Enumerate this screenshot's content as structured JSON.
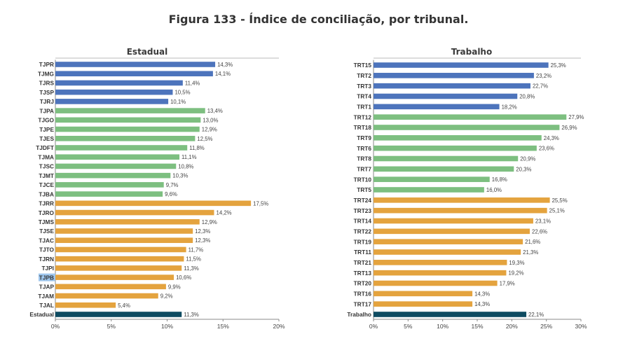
{
  "page": {
    "title": "Figura 133 - Índice de conciliação, por tribunal."
  },
  "colors": {
    "group1": "#4d74bc",
    "group2": "#7dbf80",
    "group3": "#e4a33e",
    "total": "#0e4b61",
    "highlight": "#9fc7ee"
  },
  "chart_data": [
    {
      "type": "bar",
      "orientation": "horizontal",
      "title": "Estadual",
      "xlim": [
        0,
        20
      ],
      "xticks": [
        "0%",
        "5%",
        "10%",
        "15%",
        "20%"
      ],
      "grid": false,
      "highlighted_label": "TJPB",
      "bars": [
        {
          "label": "TJPR",
          "value": 14.3,
          "text": "14,3%",
          "group": "group1"
        },
        {
          "label": "TJMG",
          "value": 14.1,
          "text": "14,1%",
          "group": "group1"
        },
        {
          "label": "TJRS",
          "value": 11.4,
          "text": "11,4%",
          "group": "group1"
        },
        {
          "label": "TJSP",
          "value": 10.5,
          "text": "10,5%",
          "group": "group1"
        },
        {
          "label": "TJRJ",
          "value": 10.1,
          "text": "10,1%",
          "group": "group1"
        },
        {
          "label": "TJPA",
          "value": 13.4,
          "text": "13,4%",
          "group": "group2"
        },
        {
          "label": "TJGO",
          "value": 13.0,
          "text": "13,0%",
          "group": "group2"
        },
        {
          "label": "TJPE",
          "value": 12.9,
          "text": "12,9%",
          "group": "group2"
        },
        {
          "label": "TJES",
          "value": 12.5,
          "text": "12,5%",
          "group": "group2"
        },
        {
          "label": "TJDFT",
          "value": 11.8,
          "text": "11,8%",
          "group": "group2"
        },
        {
          "label": "TJMA",
          "value": 11.1,
          "text": "11,1%",
          "group": "group2"
        },
        {
          "label": "TJSC",
          "value": 10.8,
          "text": "10,8%",
          "group": "group2"
        },
        {
          "label": "TJMT",
          "value": 10.3,
          "text": "10,3%",
          "group": "group2"
        },
        {
          "label": "TJCE",
          "value": 9.7,
          "text": "9,7%",
          "group": "group2"
        },
        {
          "label": "TJBA",
          "value": 9.6,
          "text": "9,6%",
          "group": "group2"
        },
        {
          "label": "TJRR",
          "value": 17.5,
          "text": "17,5%",
          "group": "group3"
        },
        {
          "label": "TJRO",
          "value": 14.2,
          "text": "14,2%",
          "group": "group3"
        },
        {
          "label": "TJMS",
          "value": 12.9,
          "text": "12,9%",
          "group": "group3"
        },
        {
          "label": "TJSE",
          "value": 12.3,
          "text": "12,3%",
          "group": "group3"
        },
        {
          "label": "TJAC",
          "value": 12.3,
          "text": "12,3%",
          "group": "group3"
        },
        {
          "label": "TJTO",
          "value": 11.7,
          "text": "11,7%",
          "group": "group3"
        },
        {
          "label": "TJRN",
          "value": 11.5,
          "text": "11,5%",
          "group": "group3"
        },
        {
          "label": "TJPI",
          "value": 11.3,
          "text": "11,3%",
          "group": "group3"
        },
        {
          "label": "TJPB",
          "value": 10.6,
          "text": "10,6%",
          "group": "group3"
        },
        {
          "label": "TJAP",
          "value": 9.9,
          "text": "9,9%",
          "group": "group3"
        },
        {
          "label": "TJAM",
          "value": 9.2,
          "text": "9,2%",
          "group": "group3"
        },
        {
          "label": "TJAL",
          "value": 5.4,
          "text": "5,4%",
          "group": "group3"
        },
        {
          "label": "Estadual",
          "value": 11.3,
          "text": "11,3%",
          "group": "total"
        }
      ]
    },
    {
      "type": "bar",
      "orientation": "horizontal",
      "title": "Trabalho",
      "xlim": [
        0,
        30
      ],
      "xticks": [
        "0%",
        "5%",
        "10%",
        "15%",
        "20%",
        "25%",
        "30%"
      ],
      "grid": false,
      "bars": [
        {
          "label": "TRT15",
          "value": 25.3,
          "text": "25,3%",
          "group": "group1"
        },
        {
          "label": "TRT2",
          "value": 23.2,
          "text": "23,2%",
          "group": "group1"
        },
        {
          "label": "TRT3",
          "value": 22.7,
          "text": "22,7%",
          "group": "group1"
        },
        {
          "label": "TRT4",
          "value": 20.8,
          "text": "20,8%",
          "group": "group1"
        },
        {
          "label": "TRT1",
          "value": 18.2,
          "text": "18,2%",
          "group": "group1"
        },
        {
          "label": "TRT12",
          "value": 27.9,
          "text": "27,9%",
          "group": "group2"
        },
        {
          "label": "TRT18",
          "value": 26.9,
          "text": "26,9%",
          "group": "group2"
        },
        {
          "label": "TRT9",
          "value": 24.3,
          "text": "24,3%",
          "group": "group2"
        },
        {
          "label": "TRT6",
          "value": 23.6,
          "text": "23,6%",
          "group": "group2"
        },
        {
          "label": "TRT8",
          "value": 20.9,
          "text": "20,9%",
          "group": "group2"
        },
        {
          "label": "TRT7",
          "value": 20.3,
          "text": "20,3%",
          "group": "group2"
        },
        {
          "label": "TRT10",
          "value": 16.8,
          "text": "16,8%",
          "group": "group2"
        },
        {
          "label": "TRT5",
          "value": 16.0,
          "text": "16,0%",
          "group": "group2"
        },
        {
          "label": "TRT24",
          "value": 25.5,
          "text": "25,5%",
          "group": "group3"
        },
        {
          "label": "TRT23",
          "value": 25.1,
          "text": "25,1%",
          "group": "group3"
        },
        {
          "label": "TRT14",
          "value": 23.1,
          "text": "23,1%",
          "group": "group3"
        },
        {
          "label": "TRT22",
          "value": 22.6,
          "text": "22,6%",
          "group": "group3"
        },
        {
          "label": "TRT19",
          "value": 21.6,
          "text": "21,6%",
          "group": "group3"
        },
        {
          "label": "TRT11",
          "value": 21.3,
          "text": "21,3%",
          "group": "group3"
        },
        {
          "label": "TRT21",
          "value": 19.3,
          "text": "19,3%",
          "group": "group3"
        },
        {
          "label": "TRT13",
          "value": 19.2,
          "text": "19,2%",
          "group": "group3"
        },
        {
          "label": "TRT20",
          "value": 17.9,
          "text": "17,9%",
          "group": "group3"
        },
        {
          "label": "TRT16",
          "value": 14.3,
          "text": "14,3%",
          "group": "group3"
        },
        {
          "label": "TRT17",
          "value": 14.3,
          "text": "14,3%",
          "group": "group3"
        },
        {
          "label": "Trabalho",
          "value": 22.1,
          "text": "22,1%",
          "group": "total"
        }
      ]
    }
  ]
}
